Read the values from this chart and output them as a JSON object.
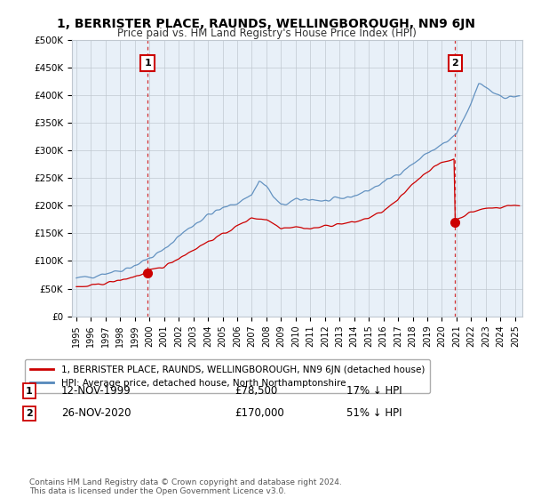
{
  "title": "1, BERRISTER PLACE, RAUNDS, WELLINGBOROUGH, NN9 6JN",
  "subtitle": "Price paid vs. HM Land Registry's House Price Index (HPI)",
  "ylabel_ticks": [
    "£0",
    "£50K",
    "£100K",
    "£150K",
    "£200K",
    "£250K",
    "£300K",
    "£350K",
    "£400K",
    "£450K",
    "£500K"
  ],
  "ytick_values": [
    0,
    50000,
    100000,
    150000,
    200000,
    250000,
    300000,
    350000,
    400000,
    450000,
    500000
  ],
  "xlim": [
    1994.7,
    2025.5
  ],
  "ylim": [
    0,
    500000
  ],
  "sale1": {
    "date_num": 1999.87,
    "price": 78500,
    "label": "1"
  },
  "sale2": {
    "date_num": 2020.9,
    "price": 170000,
    "label": "2"
  },
  "sale2_pre_price": 285000,
  "legend_red": "1, BERRISTER PLACE, RAUNDS, WELLINGBOROUGH, NN9 6JN (detached house)",
  "legend_blue": "HPI: Average price, detached house, North Northamptonshire",
  "table_row1": [
    "1",
    "12-NOV-1999",
    "£78,500",
    "17% ↓ HPI"
  ],
  "table_row2": [
    "2",
    "26-NOV-2020",
    "£170,000",
    "51% ↓ HPI"
  ],
  "footnote": "Contains HM Land Registry data © Crown copyright and database right 2024.\nThis data is licensed under the Open Government Licence v3.0.",
  "red_color": "#cc0000",
  "blue_color": "#5588bb",
  "chart_bg": "#e8f0f8",
  "vline_color": "#cc0000",
  "grid_color": "#c0c8d0",
  "bg_color": "#ffffff"
}
